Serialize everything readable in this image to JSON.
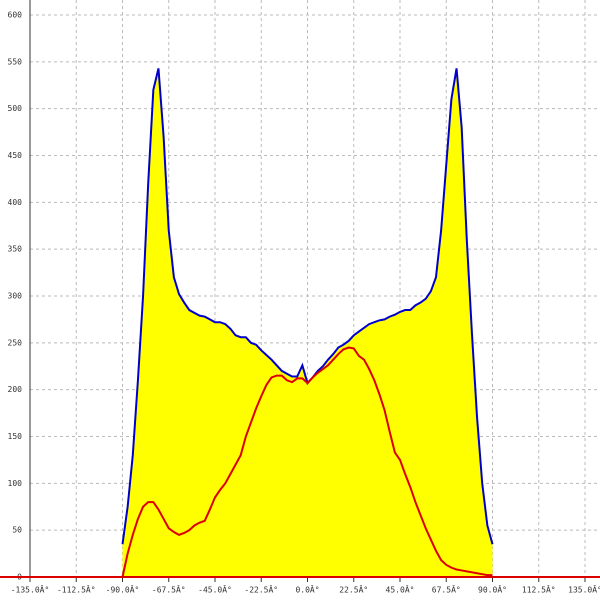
{
  "chart_data": {
    "type": "area",
    "x": [
      -90,
      -87.5,
      -85,
      -82.5,
      -80,
      -77.5,
      -75,
      -72.5,
      -70,
      -67.5,
      -65,
      -62.5,
      -60,
      -57.5,
      -55,
      -52.5,
      -50,
      -47.5,
      -45,
      -42.5,
      -40,
      -37.5,
      -35,
      -32.5,
      -30,
      -27.5,
      -25,
      -22.5,
      -20,
      -17.5,
      -15,
      -12.5,
      -10,
      -7.5,
      -5,
      -2.5,
      0,
      2.5,
      5,
      7.5,
      10,
      12.5,
      15,
      17.5,
      20,
      22.5,
      25,
      27.5,
      30,
      32.5,
      35,
      37.5,
      40,
      42.5,
      45,
      47.5,
      50,
      52.5,
      55,
      57.5,
      60,
      62.5,
      65,
      67.5,
      70,
      72.5,
      75,
      77.5,
      80,
      82.5,
      85,
      87.5,
      90
    ],
    "series": [
      {
        "color": "#0000cc",
        "fill": "#ffff00",
        "values": [
          35,
          75,
          130,
          210,
          300,
          420,
          520,
          543,
          470,
          370,
          320,
          302,
          293,
          285,
          282,
          279,
          278,
          275,
          272,
          272,
          270,
          265,
          258,
          256,
          256,
          250,
          248,
          242,
          237,
          232,
          226,
          220,
          217,
          214,
          214,
          226,
          207,
          213,
          220,
          225,
          232,
          238,
          245,
          248,
          252,
          258,
          262,
          266,
          270,
          272,
          274,
          275,
          278,
          280,
          283,
          285,
          285,
          290,
          293,
          297,
          305,
          320,
          370,
          440,
          510,
          543,
          480,
          360,
          260,
          170,
          100,
          55,
          35
        ]
      },
      {
        "color": "#dd0000",
        "values": [
          0,
          25,
          45,
          62,
          75,
          80,
          80,
          72,
          62,
          52,
          48,
          45,
          47,
          50,
          55,
          58,
          60,
          72,
          85,
          93,
          100,
          110,
          120,
          130,
          150,
          165,
          180,
          193,
          205,
          213,
          215,
          215,
          210,
          208,
          212,
          212,
          207,
          213,
          218,
          222,
          226,
          232,
          238,
          243,
          245,
          244,
          236,
          232,
          222,
          210,
          195,
          178,
          155,
          133,
          125,
          110,
          96,
          80,
          66,
          52,
          40,
          28,
          18,
          13,
          10,
          8,
          7,
          6,
          5,
          4,
          3,
          2,
          2
        ]
      }
    ],
    "xlim": [
      -135,
      135
    ],
    "xticks": [
      {
        "value": -135,
        "label": "-135.0Â°"
      },
      {
        "value": -112.5,
        "label": "-112.5Â°"
      },
      {
        "value": -90,
        "label": "-90.0Â°"
      },
      {
        "value": -67.5,
        "label": "-67.5Â°"
      },
      {
        "value": -45,
        "label": "-45.0Â°"
      },
      {
        "value": -22.5,
        "label": "-22.5Â°"
      },
      {
        "value": 0,
        "label": "0.0Â°"
      },
      {
        "value": 22.5,
        "label": "22.5Â°"
      },
      {
        "value": 45,
        "label": "45.0Â°"
      },
      {
        "value": 67.5,
        "label": "67.5Â°"
      },
      {
        "value": 90,
        "label": "90.0Â°"
      },
      {
        "value": 112.5,
        "label": "112.5Â°"
      },
      {
        "value": 135,
        "label": "135.0Â°"
      }
    ],
    "ylim": [
      0,
      600
    ],
    "yticks": [
      0,
      50,
      100,
      150,
      200,
      250,
      300,
      350,
      400,
      450,
      500,
      550,
      600
    ],
    "grid": true
  }
}
